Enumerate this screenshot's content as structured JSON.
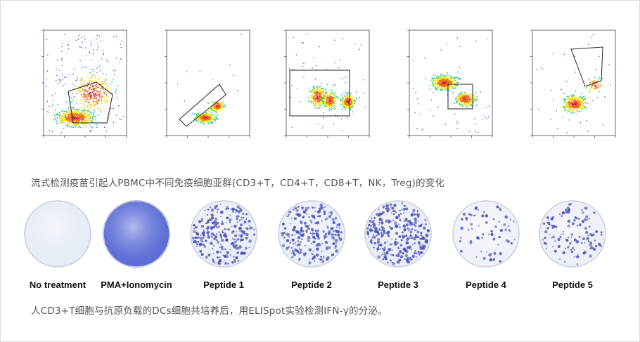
{
  "captions": {
    "flow": "流式检测疫苗引起人PBMC中不同免疫细胞亚群(CD3+T，CD4+T，CD8+T，NK，Treg)的变化",
    "elispot": "人CD3+T细胞与抗原负载的DCs细胞共培养后，用ELISpot实验检测IFN-γ的分泌。"
  },
  "wells": [
    {
      "label": "No treatment",
      "bg": "#e6ecf5",
      "spots": 0
    },
    {
      "label": "PMA+Ionomycin",
      "bg": "#5b6bd6",
      "spots": 0
    },
    {
      "label": "Peptide 1",
      "bg": "#e9edf6",
      "spots": 260
    },
    {
      "label": "Peptide 2",
      "bg": "#e9edf6",
      "spots": 240
    },
    {
      "label": "Peptide 3",
      "bg": "#e9edf6",
      "spots": 300
    },
    {
      "label": "Peptide 4",
      "bg": "#eef1f8",
      "spots": 70
    },
    {
      "label": "Peptide 5",
      "bg": "#eceff7",
      "spots": 120
    }
  ],
  "colors": {
    "dot": "#3040c8",
    "spot": "#4a4fb8",
    "gate": "#222222"
  }
}
